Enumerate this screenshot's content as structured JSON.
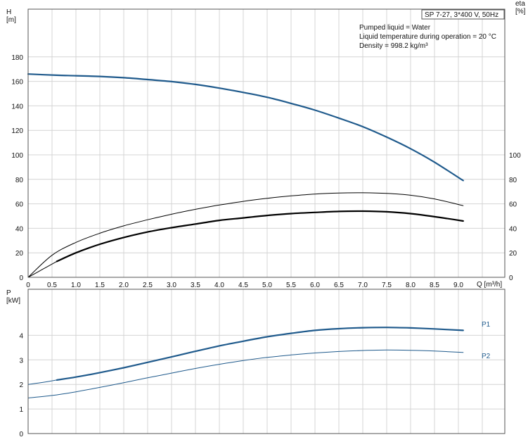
{
  "title_box": "SP 7-27, 3*400 V, 50Hz",
  "info_lines": [
    "Pumped liquid = Water",
    "Liquid temperature during operation = 20 °C",
    "Density = 998.2 kg/m³"
  ],
  "colors": {
    "blue": "#1f5a8c",
    "black": "#000000",
    "grid": "#d4d4d4"
  },
  "chart_data": [
    {
      "type": "line",
      "xlabel": "Q [m³/h]",
      "ylabel": "H\n[m]",
      "y2label": "eta\n[%]",
      "xlim": [
        0,
        10
      ],
      "ylim": [
        0,
        190
      ],
      "y2lim": [
        0,
        190
      ],
      "x_ticks": [
        "0",
        "0.5",
        "1.0",
        "1.5",
        "2.0",
        "2.5",
        "3.0",
        "3.5",
        "4.0",
        "4.5",
        "5.0",
        "5.5",
        "6.0",
        "6.5",
        "7.0",
        "7.5",
        "8.0",
        "8.5",
        "9.0"
      ],
      "y_ticks": [
        "0",
        "20",
        "40",
        "60",
        "80",
        "100",
        "120",
        "140",
        "160",
        "180"
      ],
      "y2_ticks": [
        "0",
        "20",
        "40",
        "60",
        "80",
        "100"
      ],
      "grid": true,
      "series": [
        {
          "key": "H",
          "axis": "left",
          "color": "#1f5a8c",
          "width": 2.2,
          "x": [
            0,
            0.6,
            1.0,
            1.5,
            2.0,
            2.5,
            3.0,
            3.5,
            4.0,
            4.5,
            5.0,
            5.5,
            6.0,
            6.5,
            7.0,
            7.5,
            8.0,
            8.5,
            9.1
          ],
          "y": [
            166,
            165,
            164.6,
            164,
            163,
            161.5,
            159.8,
            157.5,
            154.5,
            151,
            147,
            142,
            136.5,
            130,
            123,
            114.5,
            105,
            94,
            79
          ]
        },
        {
          "key": "eta-thin",
          "axis": "left",
          "color": "#000000",
          "width": 1,
          "x": [
            0,
            0.5,
            1.0,
            1.5,
            2.0,
            2.5,
            3.0,
            3.5,
            4.0,
            4.5,
            5.0,
            5.5,
            6.0,
            6.5,
            7.0,
            7.5,
            8.0,
            8.5,
            9.1
          ],
          "y": [
            0,
            18,
            28.5,
            36,
            42,
            47,
            51.5,
            55.5,
            59,
            62,
            64.5,
            66.5,
            68,
            68.8,
            69,
            68.5,
            67,
            64,
            58.5
          ]
        },
        {
          "key": "eta-thick",
          "axis": "left",
          "color": "#000000",
          "width": 2.2,
          "x": [
            0.6,
            1.0,
            1.5,
            2.0,
            2.5,
            3.0,
            3.5,
            4.0,
            4.5,
            5.0,
            5.5,
            6.0,
            6.5,
            7.0,
            7.5,
            8.0,
            8.5,
            9.1
          ],
          "y": [
            13,
            20,
            27,
            32.5,
            37,
            40.5,
            43.5,
            46.5,
            48.5,
            50.5,
            52,
            53,
            53.8,
            54,
            53.5,
            52,
            49.5,
            46
          ]
        },
        {
          "key": "eta-start",
          "axis": "left",
          "color": "#000000",
          "width": 1,
          "x": [
            0,
            0.3,
            0.6
          ],
          "y": [
            0,
            6.5,
            13
          ]
        }
      ]
    },
    {
      "type": "line",
      "xlabel": "",
      "ylabel": "P\n[kW]",
      "xlim": [
        0,
        10
      ],
      "ylim": [
        0,
        5
      ],
      "y_ticks": [
        "0",
        "1",
        "2",
        "3",
        "4"
      ],
      "grid": true,
      "series": [
        {
          "key": "P1-main",
          "name": "P1",
          "color": "#1f5a8c",
          "width": 2.2,
          "x": [
            0.6,
            1.0,
            1.5,
            2.0,
            2.5,
            3.0,
            3.5,
            4.0,
            4.5,
            5.0,
            5.5,
            6.0,
            6.5,
            7.0,
            7.5,
            8.0,
            8.5,
            9.1
          ],
          "y": [
            2.18,
            2.3,
            2.48,
            2.68,
            2.9,
            3.12,
            3.35,
            3.57,
            3.76,
            3.94,
            4.08,
            4.2,
            4.27,
            4.31,
            4.32,
            4.3,
            4.26,
            4.2
          ]
        },
        {
          "key": "P1-start",
          "color": "#1f5a8c",
          "width": 1,
          "x": [
            0,
            0.3,
            0.6
          ],
          "y": [
            2.0,
            2.08,
            2.18
          ]
        },
        {
          "key": "P2",
          "name": "P2",
          "color": "#1f5a8c",
          "width": 1,
          "x": [
            0,
            0.5,
            1.0,
            1.5,
            2.0,
            2.5,
            3.0,
            3.5,
            4.0,
            4.5,
            5.0,
            5.5,
            6.0,
            6.5,
            7.0,
            7.5,
            8.0,
            8.5,
            9.1
          ],
          "y": [
            1.45,
            1.55,
            1.7,
            1.88,
            2.07,
            2.27,
            2.46,
            2.65,
            2.82,
            2.97,
            3.1,
            3.2,
            3.28,
            3.34,
            3.38,
            3.4,
            3.39,
            3.36,
            3.3
          ]
        }
      ]
    }
  ]
}
